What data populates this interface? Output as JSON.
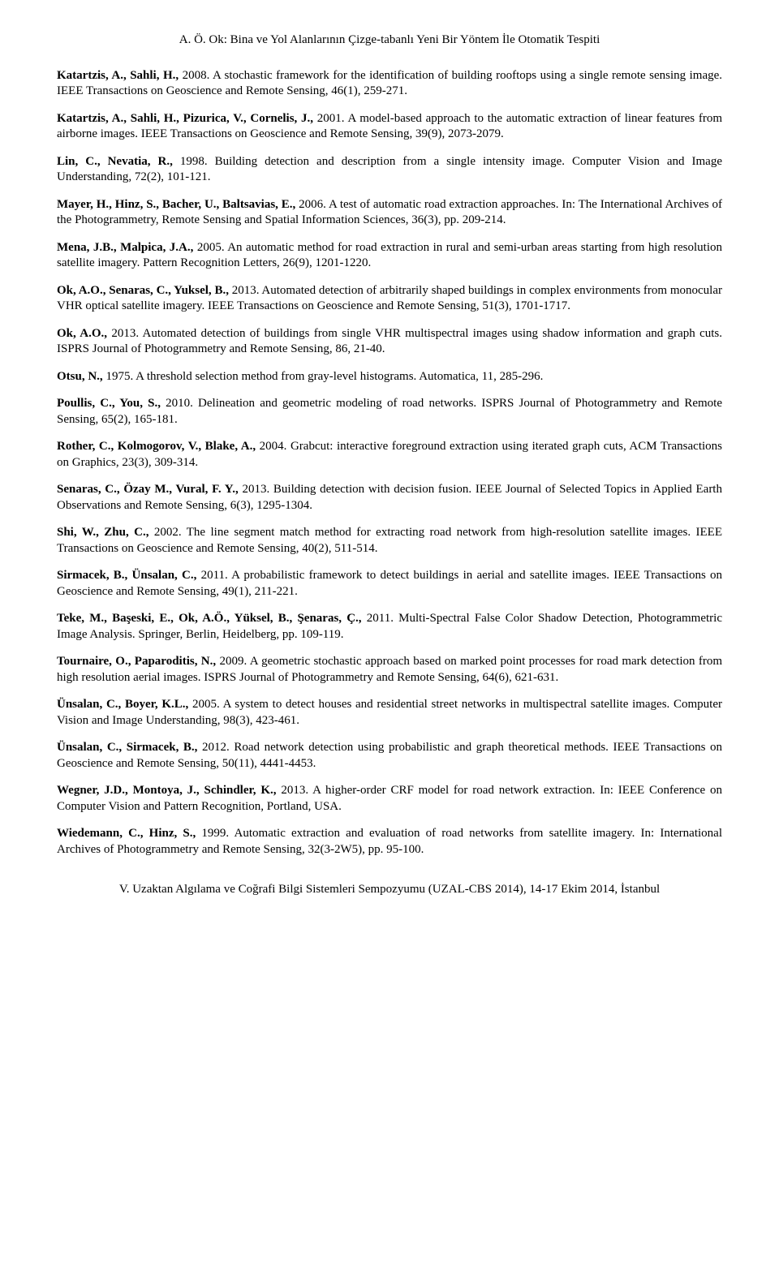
{
  "header": "A. Ö. Ok: Bina ve Yol Alanlarının Çizge-tabanlı Yeni Bir Yöntem İle Otomatik Tespiti",
  "footer": "V. Uzaktan Algılama ve Coğrafi Bilgi Sistemleri Sempozyumu (UZAL-CBS 2014), 14-17 Ekim 2014, İstanbul",
  "references": [
    {
      "authors": "Katartzis, A., Sahli, H.,",
      "rest": " 2008. A stochastic framework for the identification of building rooftops using a single remote sensing image. IEEE Transactions on Geoscience and Remote Sensing, 46(1), 259-271."
    },
    {
      "authors": "Katartzis, A., Sahli, H., Pizurica, V., Cornelis, J.,",
      "rest": " 2001. A model-based approach to the automatic extraction of linear features from airborne images. IEEE Transactions on Geoscience and Remote Sensing, 39(9), 2073-2079."
    },
    {
      "authors": "Lin, C., Nevatia, R.,",
      "rest": " 1998. Building detection and description from a single intensity image. Computer Vision and Image Understanding, 72(2), 101-121."
    },
    {
      "authors": "Mayer, H., Hinz, S., Bacher, U., Baltsavias, E.,",
      "rest": " 2006. A test of automatic road extraction approaches. In: The International Archives of the Photogrammetry, Remote Sensing and Spatial Information Sciences, 36(3), pp. 209-214."
    },
    {
      "authors": "Mena, J.B., Malpica, J.A.,",
      "rest": " 2005. An automatic method for road extraction in rural and semi-urban areas starting from high resolution satellite imagery. Pattern Recognition Letters, 26(9), 1201-1220."
    },
    {
      "authors": "Ok, A.O., Senaras, C., Yuksel, B.,",
      "rest": " 2013. Automated detection of arbitrarily shaped buildings in complex environments from monocular VHR optical satellite imagery. IEEE Transactions on Geoscience and Remote Sensing, 51(3), 1701-1717."
    },
    {
      "authors": "Ok, A.O.,",
      "rest": " 2013. Automated detection of buildings from single VHR multispectral images using shadow information and graph cuts. ISPRS Journal of Photogrammetry and Remote Sensing, 86, 21-40."
    },
    {
      "authors": "Otsu, N.,",
      "rest": " 1975. A threshold selection method from gray-level histograms. Automatica, 11, 285-296."
    },
    {
      "authors": "Poullis, C., You, S.,",
      "rest": " 2010. Delineation and geometric modeling of road networks. ISPRS Journal of Photogrammetry and Remote Sensing, 65(2), 165-181."
    },
    {
      "authors": "Rother, C., Kolmogorov, V., Blake, A.,",
      "rest": " 2004. Grabcut: interactive foreground extraction using iterated graph cuts, ACM Transactions on Graphics, 23(3), 309-314."
    },
    {
      "authors": "Senaras, C., Özay M., Vural, F. Y.,",
      "rest": " 2013. Building detection with decision fusion. IEEE Journal of Selected Topics in Applied Earth Observations and Remote Sensing, 6(3), 1295-1304."
    },
    {
      "authors": "Shi, W., Zhu, C.,",
      "rest": " 2002. The line segment match method for extracting road network from high-resolution satellite images. IEEE Transactions on Geoscience and Remote Sensing, 40(2), 511-514."
    },
    {
      "authors": "Sirmacek, B., Ünsalan, C.,",
      "rest": " 2011. A probabilistic framework to detect buildings in aerial and satellite images. IEEE Transactions on Geoscience and Remote Sensing, 49(1), 211-221."
    },
    {
      "authors": "Teke, M., Başeski, E., Ok, A.Ö., Yüksel, B., Şenaras, Ç.,",
      "rest": " 2011. Multi-Spectral False Color Shadow Detection, Photogrammetric Image Analysis. Springer, Berlin, Heidelberg, pp. 109-119."
    },
    {
      "authors": "Tournaire, O., Paparoditis, N.,",
      "rest": " 2009. A geometric stochastic approach based on marked point processes for road mark detection from high resolution aerial images. ISPRS Journal of Photogrammetry and Remote Sensing, 64(6), 621-631."
    },
    {
      "authors": "Ünsalan, C., Boyer, K.L.,",
      "rest": " 2005. A system to detect houses and residential street networks in multispectral satellite images. Computer Vision and Image Understanding, 98(3), 423-461."
    },
    {
      "authors": "Ünsalan, C., Sirmacek, B.,",
      "rest": " 2012. Road network detection using probabilistic and graph theoretical methods. IEEE Transactions on Geoscience and Remote Sensing, 50(11), 4441-4453."
    },
    {
      "authors": "Wegner, J.D., Montoya, J., Schindler, K.,",
      "rest": " 2013. A higher-order CRF model for road network extraction. In: IEEE Conference on Computer Vision and Pattern Recognition, Portland, USA."
    },
    {
      "authors": "Wiedemann, C., Hinz, S.,",
      "rest": " 1999. Automatic extraction and evaluation of road networks from satellite imagery. In: International Archives of Photogrammetry and Remote Sensing, 32(3-2W5), pp. 95-100."
    }
  ]
}
